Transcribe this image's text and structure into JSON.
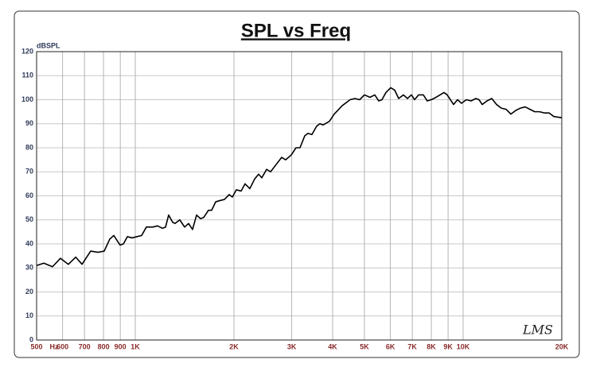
{
  "chart_data": {
    "type": "line",
    "title": "SPL vs Freq",
    "y_label": "dBSPL",
    "x_label": "Hz",
    "annotation": "LMS",
    "x_scale": "log",
    "grid": true,
    "color": "#000000",
    "xlim": [
      500,
      20000
    ],
    "ylim": [
      0,
      120
    ],
    "yticks": [
      0,
      10,
      20,
      30,
      40,
      50,
      60,
      70,
      80,
      90,
      100,
      110,
      120
    ],
    "xticks": [
      500,
      600,
      700,
      800,
      900,
      {
        "value": 1000,
        "label": "1K"
      },
      {
        "value": 2000,
        "label": "2K"
      },
      {
        "value": 3000,
        "label": "3K"
      },
      {
        "value": 4000,
        "label": "4K"
      },
      {
        "value": 5000,
        "label": "5K"
      },
      {
        "value": 6000,
        "label": "6K"
      },
      {
        "value": 7000,
        "label": "7K"
      },
      {
        "value": 8000,
        "label": "8K"
      },
      {
        "value": 9000,
        "label": "9K"
      },
      {
        "value": 10000,
        "label": "10K"
      },
      {
        "value": 20000,
        "label": "20K"
      }
    ],
    "x": [
      500,
      526,
      559,
      591,
      625,
      658,
      688,
      731,
      769,
      804,
      836,
      860,
      899,
      920,
      946,
      978,
      1011,
      1046,
      1081,
      1131,
      1169,
      1209,
      1237,
      1264,
      1300,
      1322,
      1367,
      1414,
      1454,
      1495,
      1538,
      1581,
      1617,
      1672,
      1710,
      1759,
      1808,
      1870,
      1934,
      1978,
      2034,
      2103,
      2162,
      2236,
      2313,
      2378,
      2432,
      2515,
      2586,
      2689,
      2796,
      2876,
      2991,
      3092,
      3180,
      3289,
      3363,
      3458,
      3576,
      3657,
      3740,
      3911,
      4044,
      4277,
      4522,
      4677,
      4836,
      5001,
      5201,
      5378,
      5530,
      5656,
      5816,
      6014,
      6185,
      6360,
      6577,
      6763,
      6955,
      7112,
      7314,
      7563,
      7777,
      7998,
      8270,
      8505,
      8746,
      8944,
      9146,
      9353,
      9618,
      9891,
      10228,
      10577,
      10938,
      11185,
      11438,
      11828,
      12232,
      12649,
      13081,
      13526,
      13987,
      14465,
      14958,
      15468,
      15996,
      16541,
      17105,
      17689,
      18292,
      18915,
      20000
    ],
    "values": [
      31,
      32,
      30.5,
      34,
      31.5,
      34.5,
      31.5,
      37,
      36.5,
      37,
      42,
      43.5,
      39.5,
      40,
      43,
      42.5,
      43,
      43.5,
      47,
      47,
      47.5,
      46.5,
      47,
      52,
      49,
      48.5,
      50,
      47,
      48.5,
      46,
      52,
      50.5,
      51,
      54,
      54,
      57.5,
      58,
      58.5,
      60.5,
      59.5,
      62.5,
      62,
      65,
      63,
      67,
      69,
      67.5,
      71,
      70,
      73,
      76,
      75,
      77,
      80,
      80,
      85,
      86,
      85.5,
      89,
      90,
      89.5,
      91,
      94,
      97.5,
      100,
      100.5,
      100,
      102,
      101,
      102,
      99.5,
      100,
      103,
      105,
      104,
      100.5,
      102,
      100.5,
      102,
      100,
      102,
      102,
      99.5,
      100,
      101,
      102,
      103,
      102,
      100,
      98,
      100,
      98.5,
      100,
      99.5,
      100.5,
      100,
      98,
      99.5,
      100.5,
      98,
      96.5,
      96,
      94,
      95.5,
      96.5,
      97,
      96,
      95,
      95,
      94.5,
      94.5,
      93,
      92.5
    ]
  }
}
